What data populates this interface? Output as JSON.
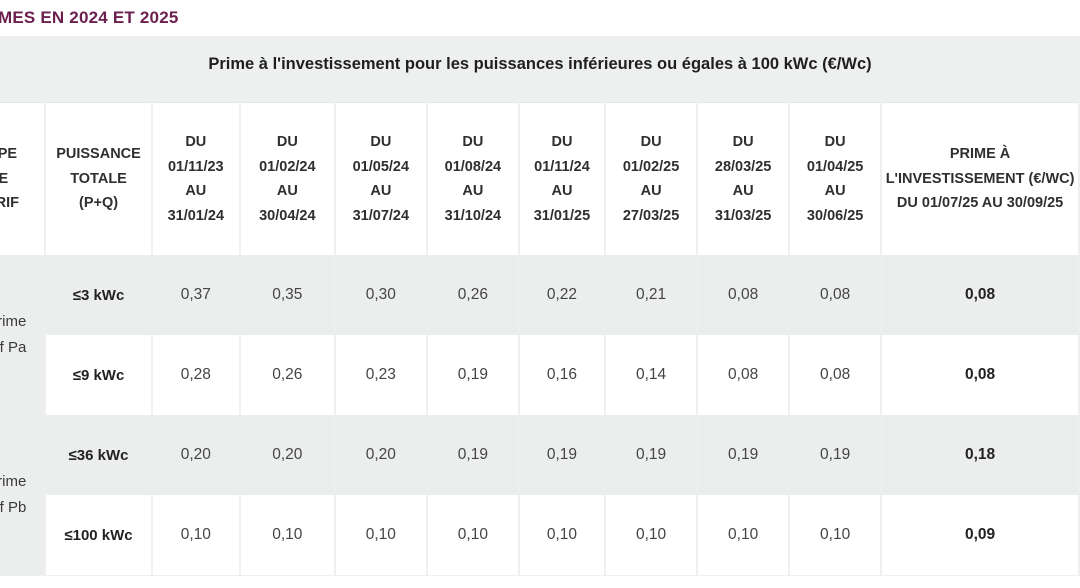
{
  "heading": "MES EN 2024 ET 2025",
  "caption": "Prime à l'investissement pour les puissances inférieures ou égales à 100 kWc (€/Wc)",
  "table": {
    "headers": {
      "type": [
        "TYPE",
        "DE",
        "TARIF"
      ],
      "puissance": [
        "PUISSANCE",
        "TOTALE",
        "(P+Q)"
      ],
      "periods": [
        [
          "DU",
          "01/11/23",
          "AU",
          "31/01/24"
        ],
        [
          "DU",
          "01/02/24",
          "AU",
          "30/04/24"
        ],
        [
          "DU",
          "01/05/24",
          "AU",
          "31/07/24"
        ],
        [
          "DU",
          "01/08/24",
          "AU",
          "31/10/24"
        ],
        [
          "DU",
          "01/11/24",
          "AU",
          "31/01/25"
        ],
        [
          "DU",
          "01/02/25",
          "AU",
          "27/03/25"
        ],
        [
          "DU",
          "28/03/25",
          "AU",
          "31/03/25"
        ],
        [
          "DU",
          "01/04/25",
          "AU",
          "30/06/25"
        ]
      ],
      "prime": [
        "PRIME À",
        "L'INVESTISSEMENT (€/Wc)",
        "DU 01/07/25 AU 30/09/25"
      ]
    },
    "groups": [
      {
        "type_lines": [
          "Prime",
          "Tarif Pa"
        ],
        "rows": [
          {
            "puissance": "≤3 kWc",
            "values": [
              "0,37",
              "0,35",
              "0,30",
              "0,26",
              "0,22",
              "0,21",
              "0,08",
              "0,08"
            ],
            "prime": "0,08"
          },
          {
            "puissance": "≤9 kWc",
            "values": [
              "0,28",
              "0,26",
              "0,23",
              "0,19",
              "0,16",
              "0,14",
              "0,08",
              "0,08"
            ],
            "prime": "0,08"
          }
        ]
      },
      {
        "type_lines": [
          "Prime",
          "Tarif Pb"
        ],
        "rows": [
          {
            "puissance": "≤36 kWc",
            "values": [
              "0,20",
              "0,20",
              "0,20",
              "0,19",
              "0,19",
              "0,19",
              "0,19",
              "0,19"
            ],
            "prime": "0,18"
          },
          {
            "puissance": "≤100 kWc",
            "values": [
              "0,10",
              "0,10",
              "0,10",
              "0,10",
              "0,10",
              "0,10",
              "0,10",
              "0,10"
            ],
            "prime": "0,09"
          }
        ]
      }
    ]
  },
  "colors": {
    "heading": "#6b1f4e",
    "band": "#eef0f0",
    "row_shaded": "#eceeee",
    "row_white": "#ffffff"
  }
}
